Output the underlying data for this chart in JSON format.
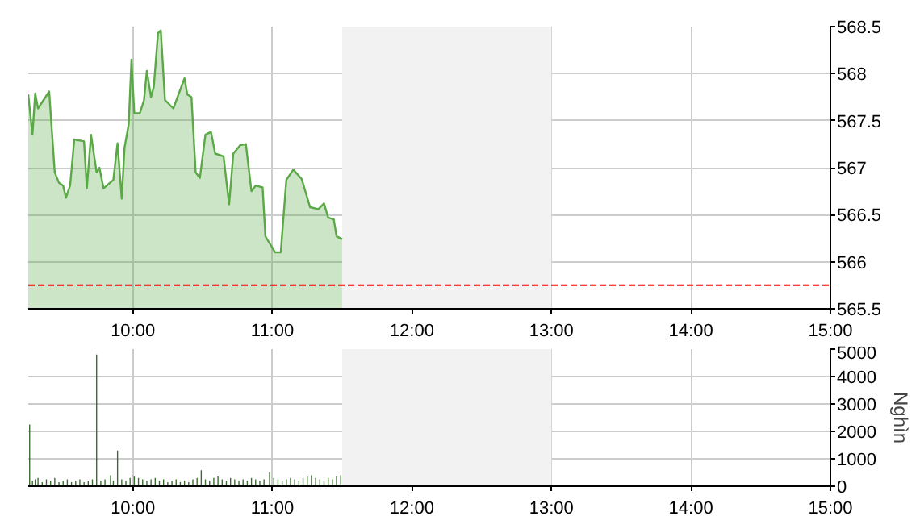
{
  "chart_data": [
    {
      "type": "area",
      "x": [
        9.25,
        9.28,
        9.3,
        9.32,
        9.4,
        9.44,
        9.47,
        9.5,
        9.52,
        9.55,
        9.58,
        9.65,
        9.67,
        9.7,
        9.74,
        9.76,
        9.79,
        9.86,
        9.89,
        9.92,
        9.94,
        9.97,
        9.99,
        10.01,
        10.05,
        10.08,
        10.1,
        10.13,
        10.15,
        10.18,
        10.2,
        10.23,
        10.29,
        10.32,
        10.37,
        10.39,
        10.42,
        10.45,
        10.48,
        10.52,
        10.56,
        10.59,
        10.65,
        10.69,
        10.72,
        10.77,
        10.81,
        10.85,
        10.88,
        10.93,
        10.95,
        11.02,
        11.06,
        11.1,
        11.15,
        11.21,
        11.27,
        11.33,
        11.37,
        11.4,
        11.44,
        11.46,
        11.5
      ],
      "series": [
        {
          "color": "#5aa846",
          "values": [
            567.78,
            567.35,
            567.79,
            567.63,
            567.81,
            566.95,
            566.84,
            566.81,
            566.68,
            566.81,
            567.3,
            567.28,
            566.78,
            567.35,
            566.95,
            567.0,
            566.78,
            566.87,
            567.26,
            566.67,
            567.21,
            567.46,
            568.15,
            567.58,
            567.58,
            567.72,
            568.03,
            567.75,
            567.86,
            568.43,
            568.46,
            567.72,
            567.63,
            567.75,
            567.95,
            567.78,
            567.75,
            566.95,
            566.89,
            567.35,
            567.38,
            567.15,
            567.12,
            566.61,
            567.15,
            567.24,
            567.25,
            566.75,
            566.81,
            566.79,
            566.27,
            566.1,
            566.1,
            566.87,
            566.98,
            566.88,
            566.58,
            566.56,
            566.62,
            566.47,
            566.45,
            566.27,
            566.24
          ]
        }
      ],
      "xlim": [
        9.25,
        15
      ],
      "xticks": [
        {
          "value": 10,
          "label": "10:00"
        },
        {
          "value": 11,
          "label": "11:00"
        },
        {
          "value": 12,
          "label": "12:00"
        },
        {
          "value": 13,
          "label": "13:00"
        },
        {
          "value": 14,
          "label": "14:00"
        },
        {
          "value": 15,
          "label": "15:00"
        }
      ],
      "ylim": [
        565.5,
        568.5
      ],
      "yticks": [
        565.5,
        566,
        566.5,
        567,
        567.5,
        568,
        568.5
      ],
      "ref_lines": [
        {
          "axis": "y",
          "value": 565.75,
          "color": "#ff0000",
          "line_style": "dashed"
        }
      ],
      "bands": [
        {
          "axis": "x",
          "from": 11.5,
          "to": 13,
          "color": "#f2f2f2"
        }
      ],
      "grid": true
    },
    {
      "type": "bar",
      "x": [
        9.26,
        9.28,
        9.3,
        9.32,
        9.35,
        9.38,
        9.41,
        9.44,
        9.47,
        9.5,
        9.53,
        9.56,
        9.59,
        9.62,
        9.65,
        9.68,
        9.71,
        9.74,
        9.77,
        9.8,
        9.84,
        9.86,
        9.89,
        9.92,
        9.95,
        9.98,
        10.01,
        10.04,
        10.07,
        10.1,
        10.13,
        10.16,
        10.19,
        10.22,
        10.25,
        10.28,
        10.31,
        10.34,
        10.37,
        10.4,
        10.43,
        10.46,
        10.49,
        10.52,
        10.55,
        10.58,
        10.61,
        10.64,
        10.67,
        10.7,
        10.73,
        10.76,
        10.79,
        10.82,
        10.85,
        10.88,
        10.91,
        10.94,
        10.98,
        11.01,
        11.04,
        11.07,
        11.1,
        11.13,
        11.16,
        11.19,
        11.22,
        11.25,
        11.28,
        11.31,
        11.34,
        11.37,
        11.4,
        11.43,
        11.46,
        11.49
      ],
      "series": [
        {
          "color": "#3a6b2e",
          "values": [
            2250,
            200,
            250,
            300,
            150,
            250,
            200,
            300,
            150,
            200,
            250,
            150,
            200,
            250,
            150,
            200,
            250,
            4800,
            200,
            250,
            400,
            200,
            1300,
            250,
            200,
            300,
            350,
            300,
            250,
            200,
            250,
            300,
            200,
            250,
            150,
            200,
            250,
            150,
            200,
            150,
            250,
            300,
            580,
            250,
            200,
            300,
            350,
            250,
            200,
            300,
            250,
            200,
            250,
            200,
            300,
            250,
            200,
            250,
            500,
            300,
            250,
            200,
            250,
            300,
            250,
            200,
            300,
            350,
            400,
            300,
            250,
            200,
            300,
            250,
            350,
            400
          ]
        }
      ],
      "xlim": [
        9.25,
        15
      ],
      "xticks": [
        {
          "value": 10,
          "label": "10:00"
        },
        {
          "value": 11,
          "label": "11:00"
        },
        {
          "value": 12,
          "label": "12:00"
        },
        {
          "value": 13,
          "label": "13:00"
        },
        {
          "value": 14,
          "label": "14:00"
        },
        {
          "value": 15,
          "label": "15:00"
        }
      ],
      "ylim": [
        0,
        5000
      ],
      "yticks": [
        0,
        1000,
        2000,
        3000,
        4000,
        5000
      ],
      "ylabel": "Nghìn",
      "bands": [
        {
          "axis": "x",
          "from": 11.5,
          "to": 13,
          "color": "#f2f2f2"
        }
      ],
      "grid": true
    }
  ]
}
